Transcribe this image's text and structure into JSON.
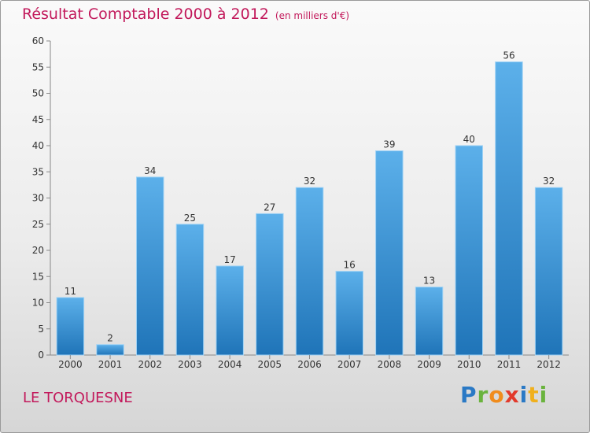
{
  "header": {
    "title": "Résultat Comptable 2000 à 2012",
    "subtitle": "(en milliers d'€)"
  },
  "footer": {
    "city": "LE TORQUESNE"
  },
  "logo": {
    "letters": [
      "P",
      "r",
      "o",
      "x",
      "i",
      "t",
      "i"
    ],
    "colors": [
      "#2a79c5",
      "#6ab33d",
      "#f08c1d",
      "#e23a2c",
      "#2a79c5",
      "#f0b01d",
      "#6ab33d"
    ]
  },
  "colors": {
    "bar_top": "#5cb0ea",
    "bar_bottom": "#1f74b8",
    "title": "#c2195b"
  },
  "chart_data": {
    "type": "bar",
    "title": "Résultat Comptable 2000 à 2012",
    "xlabel": "",
    "ylabel": "",
    "categories": [
      "2000",
      "2001",
      "2002",
      "2003",
      "2004",
      "2005",
      "2006",
      "2007",
      "2008",
      "2009",
      "2010",
      "2011",
      "2012"
    ],
    "values": [
      11,
      2,
      34,
      25,
      17,
      27,
      32,
      16,
      39,
      13,
      40,
      56,
      32
    ],
    "data_labels": [
      "11",
      "2",
      "34",
      "25",
      "17",
      "27",
      "32",
      "16",
      "39",
      "13",
      "40",
      "56",
      "32"
    ],
    "ylim": [
      0,
      60
    ],
    "yticks": [
      "0",
      "5",
      "10",
      "15",
      "20",
      "25",
      "30",
      "35",
      "40",
      "45",
      "50",
      "55",
      "60"
    ],
    "grid": false,
    "legend": "none"
  }
}
